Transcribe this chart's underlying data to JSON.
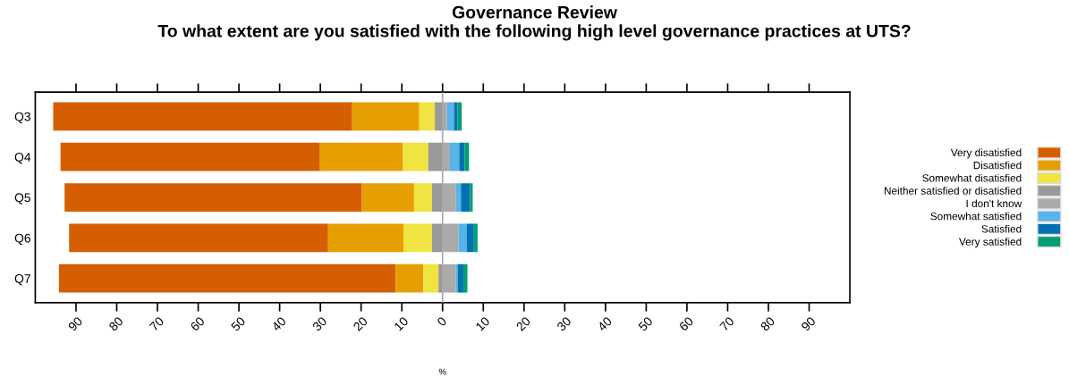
{
  "chart_data": {
    "type": "bar",
    "orientation": "horizontal",
    "stacked": true,
    "title": "Governance Review\nTo what extent are you satisfied with the following high level governance practices at UTS?",
    "xlabel": "%",
    "categories": [
      "Q3",
      "Q4",
      "Q5",
      "Q6",
      "Q7"
    ],
    "series": [
      {
        "name": "Very disatisfied",
        "color": "#d55e00",
        "values": [
          -73.4,
          -63.7,
          -73.0,
          -63.6,
          -82.7
        ]
      },
      {
        "name": "Disatisfied",
        "color": "#e69f00",
        "values": [
          -16.5,
          -20.4,
          -12.8,
          -18.5,
          -6.8
        ]
      },
      {
        "name": "Somewhat disatisfied",
        "color": "#f0e442",
        "values": [
          -3.8,
          -6.2,
          -4.4,
          -7.0,
          -3.7
        ]
      },
      {
        "name": "Neither satisfied or disatisfied",
        "color": "#999999",
        "values": [
          -1.9,
          -3.5,
          -2.6,
          -2.6,
          -1.0
        ]
      },
      {
        "name": "I don't know",
        "color": "#aaaaaa",
        "values": [
          1.1,
          1.8,
          3.3,
          3.9,
          3.3
        ]
      },
      {
        "name": "Somewhat satisfied",
        "color": "#56b4e9",
        "values": [
          1.7,
          2.3,
          1.2,
          2.0,
          0.4
        ]
      },
      {
        "name": "Satisfied",
        "color": "#0072b2",
        "values": [
          0.9,
          1.3,
          2.2,
          1.8,
          1.4
        ]
      },
      {
        "name": "Very satisfied",
        "color": "#009e73",
        "values": [
          1.0,
          1.1,
          0.7,
          0.9,
          1.0
        ]
      }
    ],
    "xlim": [
      -100,
      100
    ],
    "xticks": [
      {
        "value": -90,
        "label": "90"
      },
      {
        "value": -80,
        "label": "80"
      },
      {
        "value": -70,
        "label": "70"
      },
      {
        "value": -60,
        "label": "60"
      },
      {
        "value": -50,
        "label": "50"
      },
      {
        "value": -40,
        "label": "40"
      },
      {
        "value": -30,
        "label": "30"
      },
      {
        "value": -20,
        "label": "20"
      },
      {
        "value": -10,
        "label": "10"
      },
      0,
      10,
      20,
      30,
      40,
      50,
      60,
      70,
      80,
      90
    ],
    "ref_lines": [
      {
        "axis": "x",
        "value": 0,
        "color": "#aaaaaa"
      }
    ],
    "grid": false,
    "legend": "right"
  }
}
